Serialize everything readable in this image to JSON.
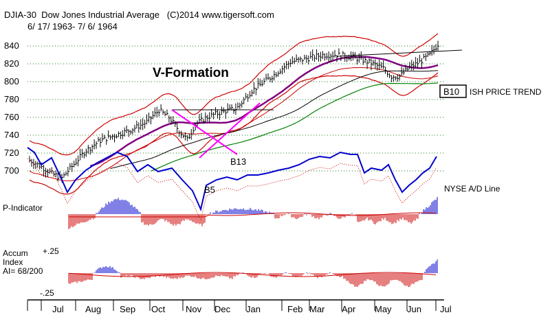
{
  "header": {
    "title": "DJIA-30  Dow Jones Industrial Average   (C)2014 www.tigersoft.com",
    "date_range": "6/ 17/ 1963- 7/ 6/ 1964"
  },
  "chart_data": {
    "type": "line",
    "title": "V-Formation",
    "price": {
      "y_ticks": [
        700,
        720,
        740,
        760,
        780,
        800,
        820,
        840
      ],
      "ylim": [
        684,
        852
      ],
      "signals": {
        "b13": "B13",
        "b5": "B5",
        "b10": "B10"
      },
      "trend_label": "ISH PRICE TREND"
    },
    "ad_line_label": "NYSE A/D Line",
    "p_indicator_label": "P-Indicator",
    "accum": {
      "label1": "Accum",
      "label2": "Index",
      "label3": "AI= 68/200",
      "top_label": "+.25",
      "bottom_label": "-.25"
    },
    "months": [
      "Jul",
      "Aug",
      "Sep",
      "Oct",
      "Nov",
      "Dec",
      "Jan",
      "Feb",
      "Mar",
      "Apr",
      "May",
      "Jun",
      "Jul"
    ],
    "colors": {
      "bars": "#000000",
      "bands": "#cc0000",
      "ma_purple": "#800080",
      "ma_green": "#008000",
      "ad_line": "#0000cc",
      "v_formation": "#ff00ff",
      "pos_hist": "#0000cc",
      "neg_hist": "#cc0000"
    }
  }
}
